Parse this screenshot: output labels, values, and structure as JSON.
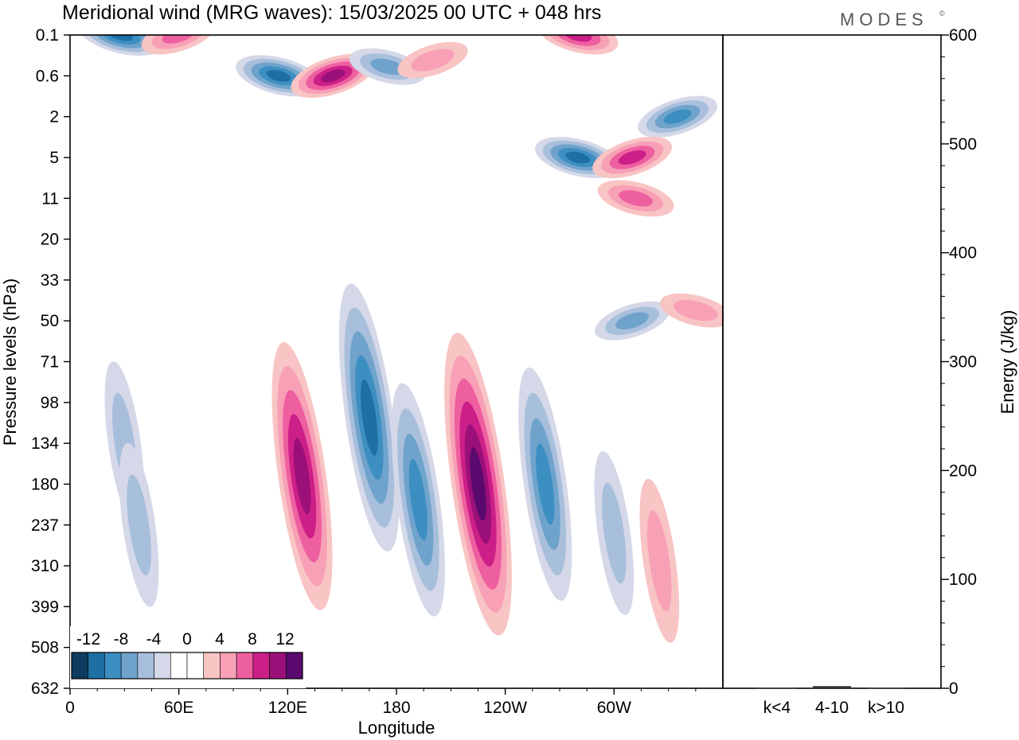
{
  "title": "Meridional wind (MRG waves):  15/03/2025  00 UTC  + 048 hrs",
  "brand": "MODES",
  "brand_mark": "©",
  "colors": {
    "neg4": "#0d3c60",
    "neg3": "#1e6fa3",
    "neg2": "#3d8fc2",
    "neg1": "#6fa3cc",
    "neg0": "#a8bfdc",
    "negLight": "#d4d8e8",
    "white": "#ffffff",
    "pos0": "#f9c4c4",
    "pos1": "#f7a0b6",
    "pos2": "#ee5fa0",
    "pos3": "#cc1f88",
    "pos4": "#9b0f78",
    "pos5": "#5a0a6e",
    "frame": "#000000"
  },
  "chart_data": [
    {
      "type": "heatmap",
      "title": "Meridional wind (MRG waves):  15/03/2025  00 UTC  + 048 hrs",
      "xlabel": "Longitude",
      "ylabel": "Pressure levels (hPa)",
      "x_ticks": [
        "0",
        "60E",
        "120E",
        "180",
        "120W",
        "60W"
      ],
      "x_tick_values": [
        0,
        60,
        120,
        180,
        240,
        300
      ],
      "x_range": [
        0,
        360
      ],
      "y_ticks": [
        "0.1",
        "0.6",
        "2",
        "5",
        "11",
        "20",
        "33",
        "50",
        "71",
        "98",
        "134",
        "180",
        "237",
        "310",
        "399",
        "508",
        "632"
      ],
      "y_scale": "pressure levels (equally spaced indices)",
      "colorbar": {
        "labels": [
          "-12",
          "-8",
          "-4",
          "0",
          "4",
          "8",
          "12"
        ],
        "levels": [
          -14,
          -12,
          -10,
          -8,
          -6,
          -4,
          -2,
          2,
          4,
          6,
          8,
          10,
          12,
          14
        ]
      },
      "features": [
        {
          "lon": 28,
          "level": 0.1,
          "value": -10
        },
        {
          "lon": 60,
          "level": 0.1,
          "value": 6
        },
        {
          "lon": 115,
          "level": 0.6,
          "value": -10
        },
        {
          "lon": 145,
          "level": 0.6,
          "value": 10
        },
        {
          "lon": 175,
          "level": 0.4,
          "value": -6
        },
        {
          "lon": 200,
          "level": 0.3,
          "value": 4
        },
        {
          "lon": 280,
          "level": 0.1,
          "value": 8
        },
        {
          "lon": 335,
          "level": 2,
          "value": -8
        },
        {
          "lon": 280,
          "level": 5,
          "value": -10
        },
        {
          "lon": 310,
          "level": 5,
          "value": 8
        },
        {
          "lon": 312,
          "level": 11,
          "value": 6
        },
        {
          "lon": 310,
          "level": 50,
          "value": -6
        },
        {
          "lon": 345,
          "level": 45,
          "value": 4
        },
        {
          "lon": 30,
          "level": 134,
          "value": -4
        },
        {
          "lon": 38,
          "level": 237,
          "value": -4
        },
        {
          "lon": 128,
          "level": 170,
          "value": 10
        },
        {
          "lon": 165,
          "level": 110,
          "value": -10
        },
        {
          "lon": 192,
          "level": 200,
          "value": -8
        },
        {
          "lon": 225,
          "level": 180,
          "value": 12
        },
        {
          "lon": 262,
          "level": 180,
          "value": -8
        },
        {
          "lon": 300,
          "level": 250,
          "value": -4
        },
        {
          "lon": 325,
          "level": 300,
          "value": 4
        }
      ]
    },
    {
      "type": "bar",
      "categories": [
        "k<4",
        "4-10",
        "k>10"
      ],
      "values": [
        0.3,
        2,
        0.3
      ],
      "ylabel": "Energy (J/kg)",
      "ylim": [
        0,
        600
      ],
      "y_ticks": [
        "0",
        "100",
        "200",
        "300",
        "400",
        "500",
        "600"
      ]
    }
  ]
}
